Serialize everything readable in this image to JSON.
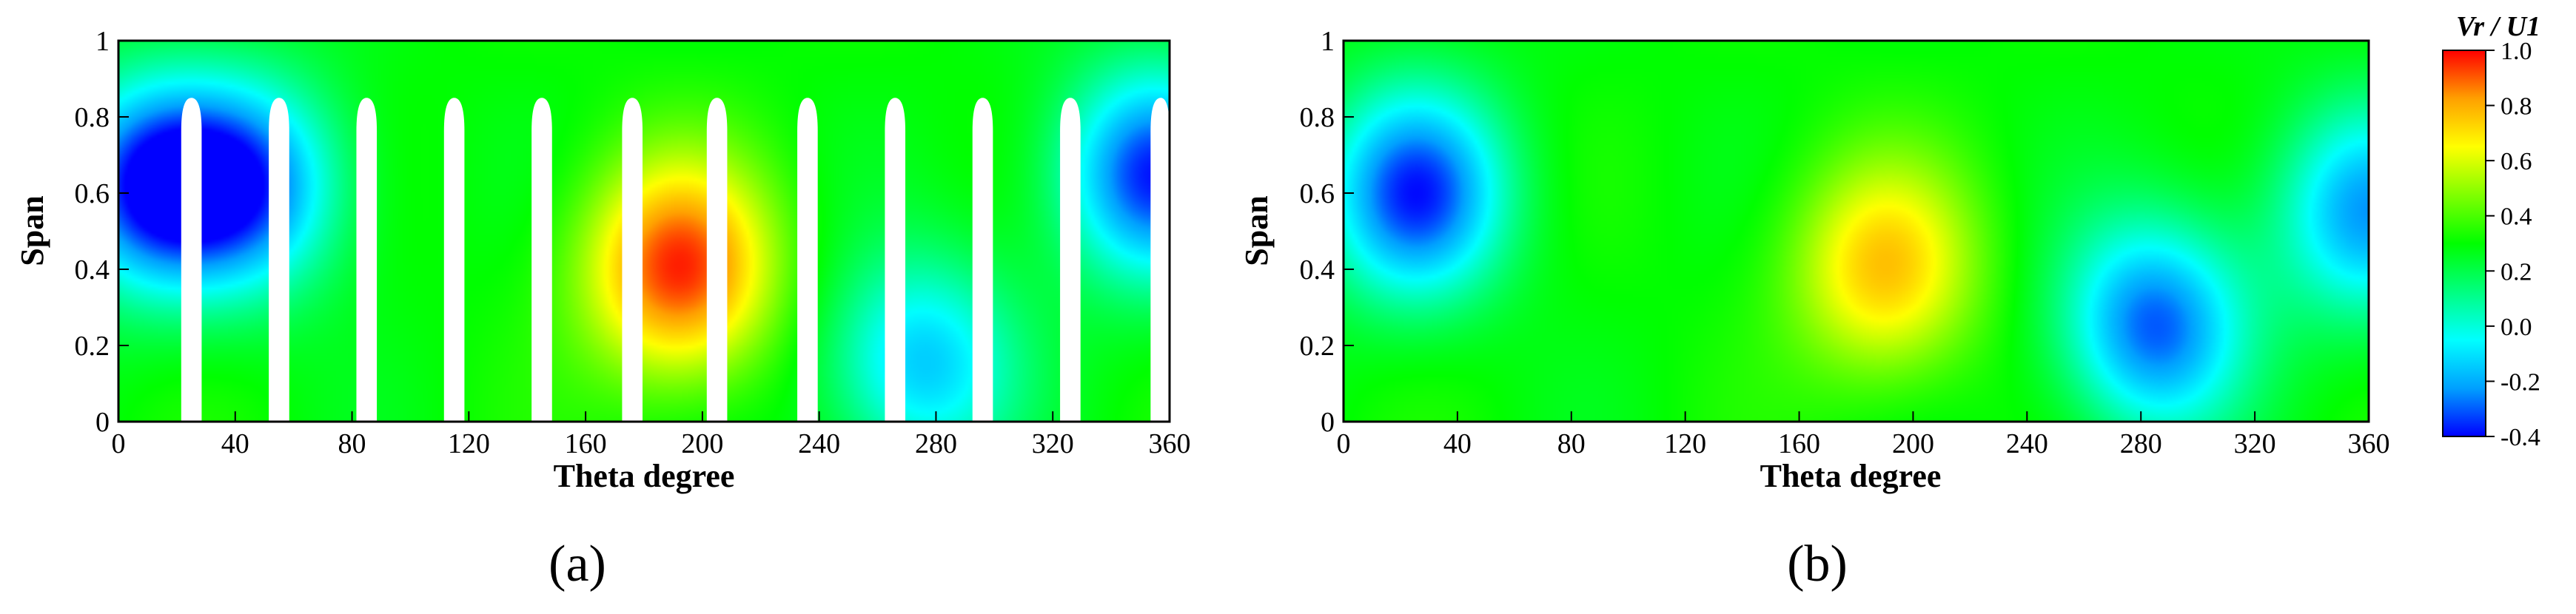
{
  "chart_data": [
    {
      "type": "heatmap",
      "panel_label": "(a)",
      "xlabel": "Theta degree",
      "ylabel": "Span",
      "xlim": [
        0,
        360
      ],
      "ylim": [
        0,
        1
      ],
      "xticks": [
        "0",
        "40",
        "80",
        "120",
        "160",
        "200",
        "240",
        "280",
        "320",
        "360"
      ],
      "yticks": [
        "0",
        "0.2",
        "0.4",
        "0.6",
        "0.8",
        "1"
      ],
      "blades": {
        "theta": [
          25,
          55,
          85,
          115,
          145,
          176,
          205,
          236,
          266,
          296,
          326,
          357
        ],
        "width_deg": 7,
        "tip_span": 0.85
      },
      "features": [
        {
          "label": "low-velocity region",
          "theta": 10,
          "span": 0.62,
          "value": -0.35
        },
        {
          "label": "low-velocity region",
          "theta": 45,
          "span": 0.62,
          "value": -0.25
        },
        {
          "label": "high-velocity region",
          "theta": 192,
          "span": 0.4,
          "value": 0.95
        },
        {
          "label": "low-velocity region",
          "theta": 275,
          "span": 0.15,
          "value": -0.15
        },
        {
          "label": "low-velocity region",
          "theta": 355,
          "span": 0.65,
          "value": -0.35
        }
      ]
    },
    {
      "type": "heatmap",
      "panel_label": "(b)",
      "xlabel": "Theta degree",
      "ylabel": "Span",
      "xlim": [
        0,
        360
      ],
      "ylim": [
        0,
        1
      ],
      "xticks": [
        "0",
        "40",
        "80",
        "120",
        "160",
        "200",
        "240",
        "280",
        "320",
        "360"
      ],
      "yticks": [
        "0",
        "0.2",
        "0.4",
        "0.6",
        "0.8",
        "1"
      ],
      "features": [
        {
          "label": "low-velocity region",
          "theta": 25,
          "span": 0.6,
          "value": -0.35
        },
        {
          "label": "high-velocity region",
          "theta": 190,
          "span": 0.4,
          "value": 0.75
        },
        {
          "label": "low-velocity region",
          "theta": 285,
          "span": 0.25,
          "value": -0.3
        },
        {
          "label": "low-velocity region",
          "theta": 360,
          "span": 0.55,
          "value": -0.2
        }
      ]
    }
  ],
  "colorbar": {
    "title": "Vr / U1",
    "min": -0.4,
    "max": 1.0,
    "ticks": [
      "1.0",
      "0.8",
      "0.6",
      "0.4",
      "0.2",
      "0.0",
      "-0.2",
      "-0.4"
    ],
    "colors": [
      "#0000ff",
      "#00a0ff",
      "#00ffff",
      "#00ff80",
      "#00ff00",
      "#80ff00",
      "#ffff00",
      "#ffa000",
      "#ff0000"
    ]
  }
}
